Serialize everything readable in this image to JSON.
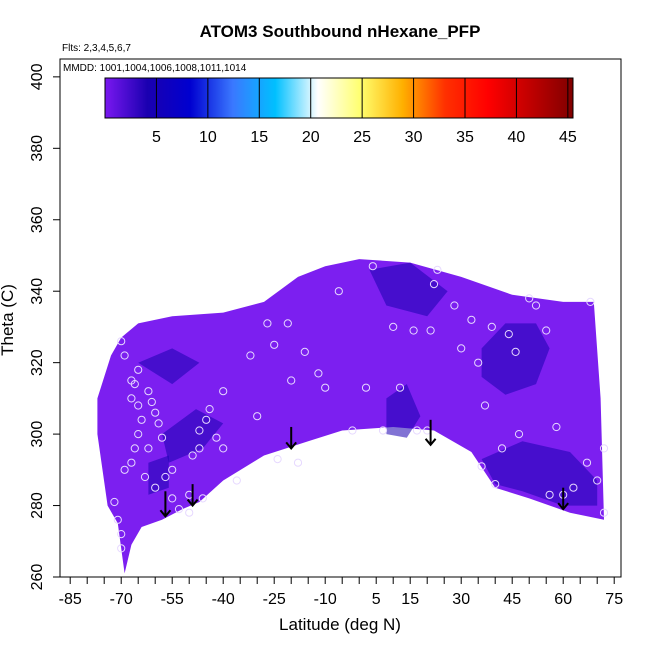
{
  "chart_data": {
    "type": "heatmap",
    "title": "ATOM3 Southbound nHexane_PFP",
    "subtitle_flights": "Flts: 2,3,4,5,6,7",
    "subtitle_dates": "MMDD: 1001,1004,1006,1008,1011,1014",
    "xlabel": "Latitude (deg N)",
    "ylabel": "Theta (C)",
    "xlim": [
      -88,
      77
    ],
    "ylim": [
      260,
      405
    ],
    "x_ticks": [
      -85,
      -70,
      -55,
      -40,
      -25,
      -10,
      5,
      15,
      30,
      45,
      60,
      75
    ],
    "x_ticklabels": [
      "-85",
      "-70",
      "-55",
      "-40",
      "-25",
      "-10",
      "5",
      "15",
      "30",
      "45",
      "60",
      "75"
    ],
    "y_ticks": [
      260,
      280,
      300,
      320,
      340,
      360,
      380,
      400
    ],
    "y_ticklabels": [
      "260",
      "280",
      "300",
      "320",
      "340",
      "360",
      "380",
      "400"
    ],
    "colorbar": {
      "range": [
        0,
        45.5
      ],
      "ticks": [
        5,
        10,
        15,
        20,
        25,
        30,
        35,
        40,
        45
      ],
      "ticklabels": [
        "5",
        "10",
        "15",
        "20",
        "25",
        "30",
        "35",
        "40",
        "45"
      ],
      "colors": [
        "#7a18f0",
        "#1a00b0",
        "#0000d0",
        "#3a78ff",
        "#00c0ff",
        "#ffffff",
        "#ffff70",
        "#ffb000",
        "#ff3000",
        "#ff0000",
        "#c00000",
        "#800000"
      ]
    },
    "field_color": "#7c1ff0",
    "field_outline": [
      [
        -77,
        310
      ],
      [
        -73,
        322
      ],
      [
        -70,
        327
      ],
      [
        -65,
        331
      ],
      [
        -55,
        333
      ],
      [
        -40,
        334
      ],
      [
        -28,
        337
      ],
      [
        -18,
        344
      ],
      [
        -10,
        347
      ],
      [
        0,
        349
      ],
      [
        15,
        348
      ],
      [
        30,
        344
      ],
      [
        45,
        339
      ],
      [
        60,
        337
      ],
      [
        69,
        337
      ],
      [
        71,
        310
      ],
      [
        72,
        276
      ],
      [
        62,
        278
      ],
      [
        50,
        282
      ],
      [
        40,
        285
      ],
      [
        33,
        295
      ],
      [
        22,
        301
      ],
      [
        10,
        302
      ],
      [
        -5,
        301
      ],
      [
        -15,
        298
      ],
      [
        -28,
        294
      ],
      [
        -40,
        287
      ],
      [
        -47,
        281
      ],
      [
        -52,
        279
      ],
      [
        -58,
        276
      ],
      [
        -64,
        274
      ],
      [
        -67,
        269
      ],
      [
        -69,
        261
      ],
      [
        -71,
        275
      ],
      [
        -74,
        280
      ],
      [
        -77,
        300
      ]
    ],
    "dark_regions": [
      {
        "value": 3,
        "polygon": [
          [
            36,
            324
          ],
          [
            43,
            331
          ],
          [
            52,
            331
          ],
          [
            56,
            324
          ],
          [
            52,
            314
          ],
          [
            43,
            311
          ],
          [
            36,
            316
          ]
        ]
      },
      {
        "value": 3,
        "polygon": [
          [
            36,
            293
          ],
          [
            48,
            298
          ],
          [
            62,
            295
          ],
          [
            70,
            287
          ],
          [
            70,
            280
          ],
          [
            60,
            280
          ],
          [
            48,
            284
          ],
          [
            40,
            286
          ]
        ]
      },
      {
        "value": 4,
        "polygon": [
          [
            8,
            310
          ],
          [
            14,
            314
          ],
          [
            18,
            305
          ],
          [
            14,
            299
          ],
          [
            8,
            300
          ]
        ]
      },
      {
        "value": 4,
        "polygon": [
          [
            3,
            346
          ],
          [
            15,
            348
          ],
          [
            26,
            340
          ],
          [
            20,
            333
          ],
          [
            8,
            336
          ]
        ]
      },
      {
        "value": 4,
        "polygon": [
          [
            -58,
            300
          ],
          [
            -48,
            307
          ],
          [
            -40,
            303
          ],
          [
            -46,
            296
          ],
          [
            -56,
            292
          ]
        ]
      },
      {
        "value": 4,
        "polygon": [
          [
            -62,
            292
          ],
          [
            -56,
            294
          ],
          [
            -56,
            285
          ],
          [
            -62,
            283
          ]
        ]
      },
      {
        "value": 4,
        "polygon": [
          [
            -65,
            320
          ],
          [
            -55,
            324
          ],
          [
            -47,
            320
          ],
          [
            -55,
            314
          ]
        ]
      }
    ],
    "circles": [
      [
        -70,
        326
      ],
      [
        -69,
        322
      ],
      [
        -67,
        315
      ],
      [
        -66,
        314
      ],
      [
        -65,
        318
      ],
      [
        -67,
        310
      ],
      [
        -65,
        308
      ],
      [
        -64,
        304
      ],
      [
        -65,
        300
      ],
      [
        -66,
        296
      ],
      [
        -67,
        292
      ],
      [
        -69,
        290
      ],
      [
        -62,
        312
      ],
      [
        -61,
        309
      ],
      [
        -60,
        306
      ],
      [
        -59,
        303
      ],
      [
        -58,
        299
      ],
      [
        -62,
        296
      ],
      [
        -63,
        288
      ],
      [
        -60,
        285
      ],
      [
        -57,
        288
      ],
      [
        -55,
        282
      ],
      [
        -53,
        279
      ],
      [
        -50,
        283
      ],
      [
        -49,
        294
      ],
      [
        -47,
        296
      ],
      [
        -47,
        301
      ],
      [
        -45,
        304
      ],
      [
        -42,
        299
      ],
      [
        -44,
        307
      ],
      [
        -40,
        312
      ],
      [
        -40,
        296
      ],
      [
        -36,
        287
      ],
      [
        -32,
        322
      ],
      [
        -27,
        331
      ],
      [
        -25,
        325
      ],
      [
        -21,
        331
      ],
      [
        -20,
        315
      ],
      [
        -16,
        323
      ],
      [
        -12,
        317
      ],
      [
        -10,
        313
      ],
      [
        -6,
        340
      ],
      [
        -2,
        301
      ],
      [
        2,
        313
      ],
      [
        4,
        347
      ],
      [
        7,
        301
      ],
      [
        10,
        330
      ],
      [
        12,
        313
      ],
      [
        16,
        329
      ],
      [
        17,
        301
      ],
      [
        21,
        329
      ],
      [
        22,
        342
      ],
      [
        23,
        346
      ],
      [
        28,
        336
      ],
      [
        30,
        324
      ],
      [
        33,
        332
      ],
      [
        35,
        320
      ],
      [
        37,
        308
      ],
      [
        39,
        330
      ],
      [
        42,
        296
      ],
      [
        44,
        328
      ],
      [
        46,
        323
      ],
      [
        47,
        300
      ],
      [
        50,
        338
      ],
      [
        52,
        336
      ],
      [
        55,
        329
      ],
      [
        58,
        302
      ],
      [
        60,
        283
      ],
      [
        63,
        285
      ],
      [
        67,
        292
      ],
      [
        70,
        287
      ],
      [
        72,
        296
      ],
      [
        -71,
        276
      ],
      [
        -70,
        272
      ],
      [
        -70,
        268
      ],
      [
        -72,
        281
      ],
      [
        -55,
        290
      ],
      [
        -50,
        278
      ],
      [
        -46,
        282
      ],
      [
        -30,
        305
      ],
      [
        -24,
        293
      ],
      [
        -18,
        292
      ],
      [
        20,
        301
      ],
      [
        36,
        291
      ],
      [
        40,
        286
      ],
      [
        56,
        283
      ],
      [
        68,
        337
      ],
      [
        72,
        278
      ]
    ],
    "arrows": [
      {
        "lat": -57,
        "theta_top": 284,
        "theta_bottom": 277
      },
      {
        "lat": -49,
        "theta_top": 286,
        "theta_bottom": 280
      },
      {
        "lat": -20,
        "theta_top": 302,
        "theta_bottom": 296
      },
      {
        "lat": 21,
        "theta_top": 304,
        "theta_bottom": 297
      },
      {
        "lat": 60,
        "theta_top": 285,
        "theta_bottom": 279
      }
    ]
  }
}
